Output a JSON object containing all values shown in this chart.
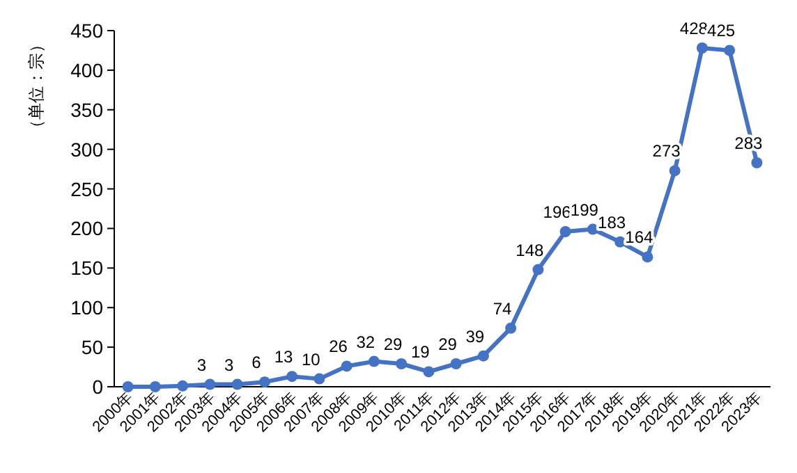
{
  "chart_data": {
    "type": "line",
    "ylabel": "（单位：宗）",
    "categories": [
      "2000年",
      "2001年",
      "2002年",
      "2003年",
      "2004年",
      "2005年",
      "2006年",
      "2007年",
      "2008年",
      "2009年",
      "2010年",
      "2011年",
      "2012年",
      "2013年",
      "2014年",
      "2015年",
      "2016年",
      "2017年",
      "2018年",
      "2019年",
      "2020年",
      "2021年",
      "2022年",
      "2023年"
    ],
    "series": [
      {
        "color": "#4472c4",
        "values": [
          0,
          0,
          1,
          3,
          3,
          6,
          13,
          10,
          26,
          32,
          29,
          19,
          29,
          39,
          74,
          148,
          196,
          199,
          183,
          164,
          273,
          428,
          425,
          283
        ],
        "value_labels": [
          null,
          null,
          null,
          "3",
          "3",
          "6",
          "13",
          "10",
          "26",
          "32",
          "29",
          "19",
          "29",
          "39",
          "74",
          "148",
          "196",
          "199",
          "183",
          "164",
          "273",
          "428",
          "425",
          "283"
        ]
      }
    ],
    "ylim": [
      0,
      450
    ],
    "yticks": [
      0,
      50,
      100,
      150,
      200,
      250,
      300,
      350,
      400,
      450
    ],
    "grid": false,
    "marker": "circle",
    "line_style": "solid"
  }
}
